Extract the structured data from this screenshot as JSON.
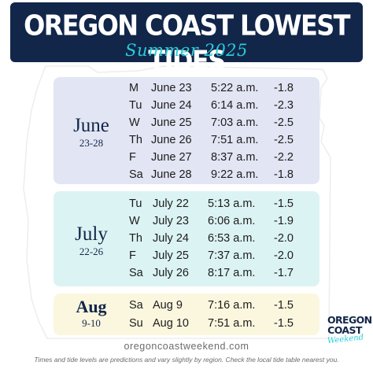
{
  "header": {
    "title": "OREGON COAST LOWEST TIDES",
    "subtitle": "Summer 2025"
  },
  "months": [
    {
      "name": "June",
      "range": "23-28",
      "rows": [
        {
          "day": "M",
          "date": "June 23",
          "time": "5:22 a.m.",
          "level": "-1.8"
        },
        {
          "day": "Tu",
          "date": "June 24",
          "time": "6:14 a.m.",
          "level": "-2.3"
        },
        {
          "day": "W",
          "date": "June 25",
          "time": "7:03 a.m.",
          "level": "-2.5"
        },
        {
          "day": "Th",
          "date": "June 26",
          "time": "7:51 a.m.",
          "level": "-2.5"
        },
        {
          "day": "F",
          "date": "June 27",
          "time": "8:37 a.m.",
          "level": "-2.2"
        },
        {
          "day": "Sa",
          "date": "June 28",
          "time": "9:22 a.m.",
          "level": "-1.8"
        }
      ]
    },
    {
      "name": "July",
      "range": "22-26",
      "rows": [
        {
          "day": "Tu",
          "date": "July 22",
          "time": "5:13 a.m.",
          "level": "-1.5"
        },
        {
          "day": "W",
          "date": "July 23",
          "time": "6:06 a.m.",
          "level": "-1.9"
        },
        {
          "day": "Th",
          "date": "July 24",
          "time": "6:53 a.m.",
          "level": "-2.0"
        },
        {
          "day": "F",
          "date": "July 25",
          "time": "7:37 a.m.",
          "level": "-2.0"
        },
        {
          "day": "Sa",
          "date": "July 26",
          "time": "8:17 a.m.",
          "level": "-1.7"
        }
      ]
    },
    {
      "name": "Aug",
      "range": "9-10",
      "rows": [
        {
          "day": "Sa",
          "date": "Aug 9",
          "time": "7:16 a.m.",
          "level": "-1.5"
        },
        {
          "day": "Su",
          "date": "Aug 10",
          "time": "7:51 a.m.",
          "level": "-1.5"
        }
      ]
    }
  ],
  "footer": {
    "website": "oregoncoastweekend.com",
    "disclaimer": "Times and tide levels are predictions and vary slightly by region. Check the local tide table nearest you."
  },
  "logo": {
    "line1": "OREGON",
    "line2": "COAST",
    "line3": "Weekend"
  },
  "colors": {
    "navy": "#12264a",
    "teal": "#27cdd8",
    "june_panel": "#e2e5f3",
    "july_panel": "#dcf3f3",
    "aug_panel": "#fbf7df"
  }
}
